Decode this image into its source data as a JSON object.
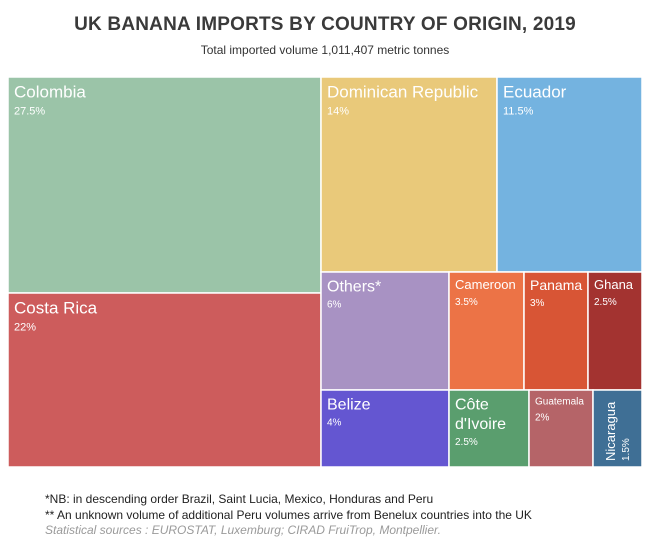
{
  "title": "UK BANANA IMPORTS BY COUNTRY OF ORIGIN, 2019",
  "subtitle": "Total imported volume 1,011,407 metric tonnes",
  "footnotes": {
    "nb": "*NB: in descending order Brazil, Saint Lucia, Mexico, Honduras and Peru",
    "peru": "** An unknown volume of additional Peru volumes arrive from Benelux countries into the UK",
    "source": "Statistical sources : EUROSTAT, Luxemburg; CIRAD FruiTrop, Montpellier."
  },
  "chart_data": {
    "type": "treemap",
    "unit": "%",
    "items": [
      {
        "label": "Colombia",
        "value": 27.5,
        "value_label": "27.5%",
        "color": "#9bc4a8"
      },
      {
        "label": "Costa Rica",
        "value": 22,
        "value_label": "22%",
        "color": "#cd5c5c"
      },
      {
        "label": "Dominican Republic",
        "value": 14,
        "value_label": "14%",
        "color": "#e9c97a"
      },
      {
        "label": "Ecuador",
        "value": 11.5,
        "value_label": "11.5%",
        "color": "#74b3e0"
      },
      {
        "label": "Others*",
        "value": 6,
        "value_label": "6%",
        "color": "#a892c3"
      },
      {
        "label": "Cameroon",
        "value": 3.5,
        "value_label": "3.5%",
        "color": "#ec7346"
      },
      {
        "label": "Panama",
        "value": 3,
        "value_label": "3%",
        "color": "#d85535"
      },
      {
        "label": "Ghana",
        "value": 2.5,
        "value_label": "2.5%",
        "color": "#a33330"
      },
      {
        "label": "Belize",
        "value": 4,
        "value_label": "4%",
        "color": "#6456d1"
      },
      {
        "label": "Côte d'Ivoire",
        "value": 2.5,
        "value_label": "2.5%",
        "color": "#5a9e6e"
      },
      {
        "label": "Guatemala",
        "value": 2,
        "value_label": "2%",
        "color": "#b56468"
      },
      {
        "label": "Nicaragua",
        "value": 1.5,
        "value_label": "1.5%",
        "color": "#3f6f95"
      }
    ]
  }
}
